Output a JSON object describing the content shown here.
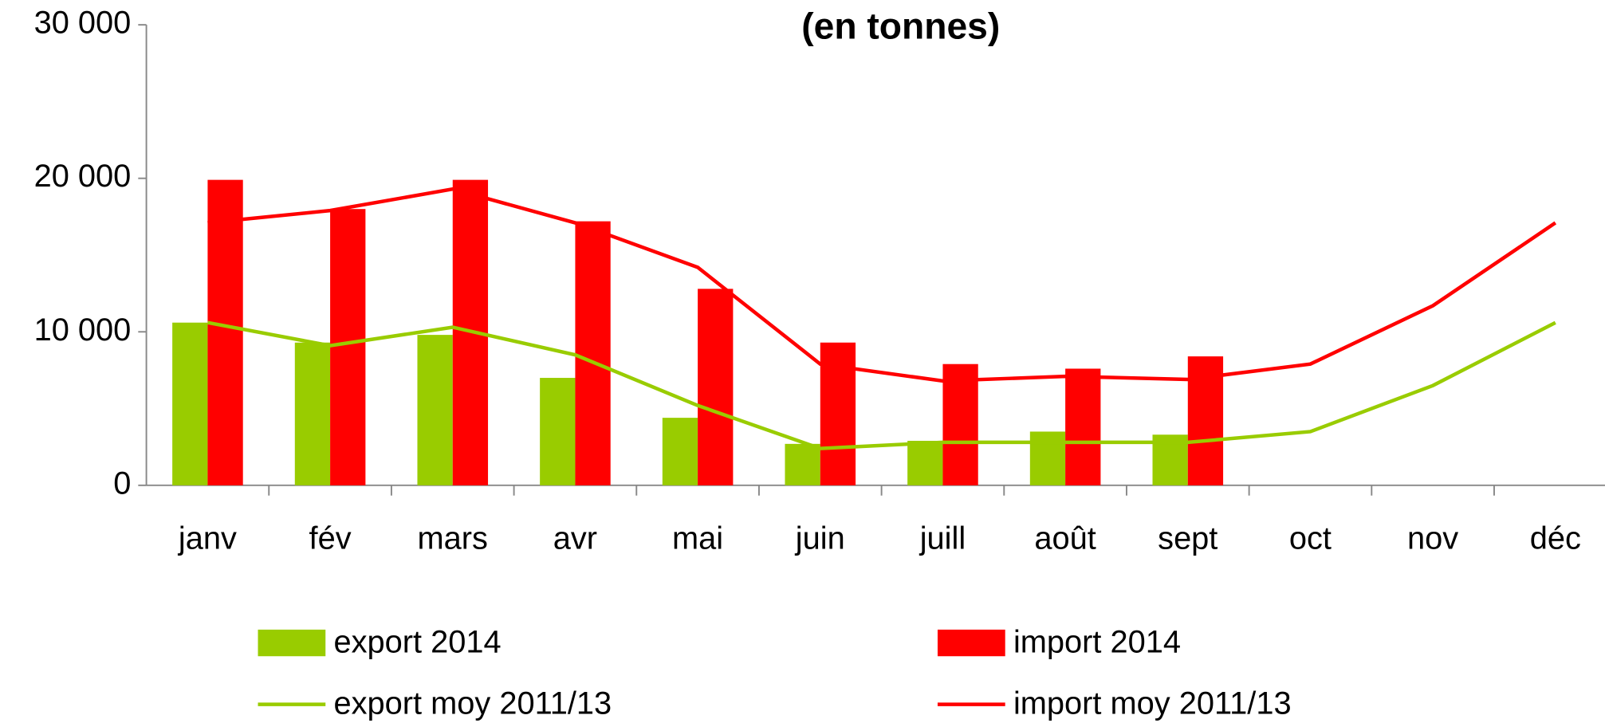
{
  "chart_data": {
    "type": "bar",
    "title": "(en tonnes)",
    "categories": [
      "janv",
      "fév",
      "mars",
      "avr",
      "mai",
      "juin",
      "juill",
      "août",
      "sept",
      "oct",
      "nov",
      "déc"
    ],
    "series": [
      {
        "name": "export 2014",
        "color": "#99cc00",
        "kind": "bar",
        "values": [
          10600,
          9300,
          9800,
          7000,
          4400,
          2700,
          2900,
          3500,
          3300,
          null,
          null,
          null
        ]
      },
      {
        "name": "import 2014",
        "color": "#ff0000",
        "kind": "bar",
        "values": [
          19900,
          18000,
          19900,
          17200,
          12800,
          9300,
          7900,
          7600,
          8400,
          null,
          null,
          null
        ]
      },
      {
        "name": "export moy 2011/13",
        "color": "#99cc00",
        "kind": "line",
        "values": [
          10600,
          9100,
          10300,
          8500,
          5200,
          2400,
          2800,
          2800,
          2800,
          3500,
          6500,
          10600
        ]
      },
      {
        "name": "import moy 2011/13",
        "color": "#ff0000",
        "kind": "line",
        "values": [
          17100,
          17900,
          19300,
          17100,
          14200,
          7900,
          6800,
          7100,
          6900,
          7900,
          11700,
          17100
        ]
      }
    ],
    "ylim": [
      0,
      30000
    ],
    "yticks": [
      {
        "value": 0,
        "label": "0"
      },
      {
        "value": 10000,
        "label": "10 000"
      },
      {
        "value": 20000,
        "label": "20 000"
      },
      {
        "value": 30000,
        "label": "30 000"
      }
    ]
  }
}
